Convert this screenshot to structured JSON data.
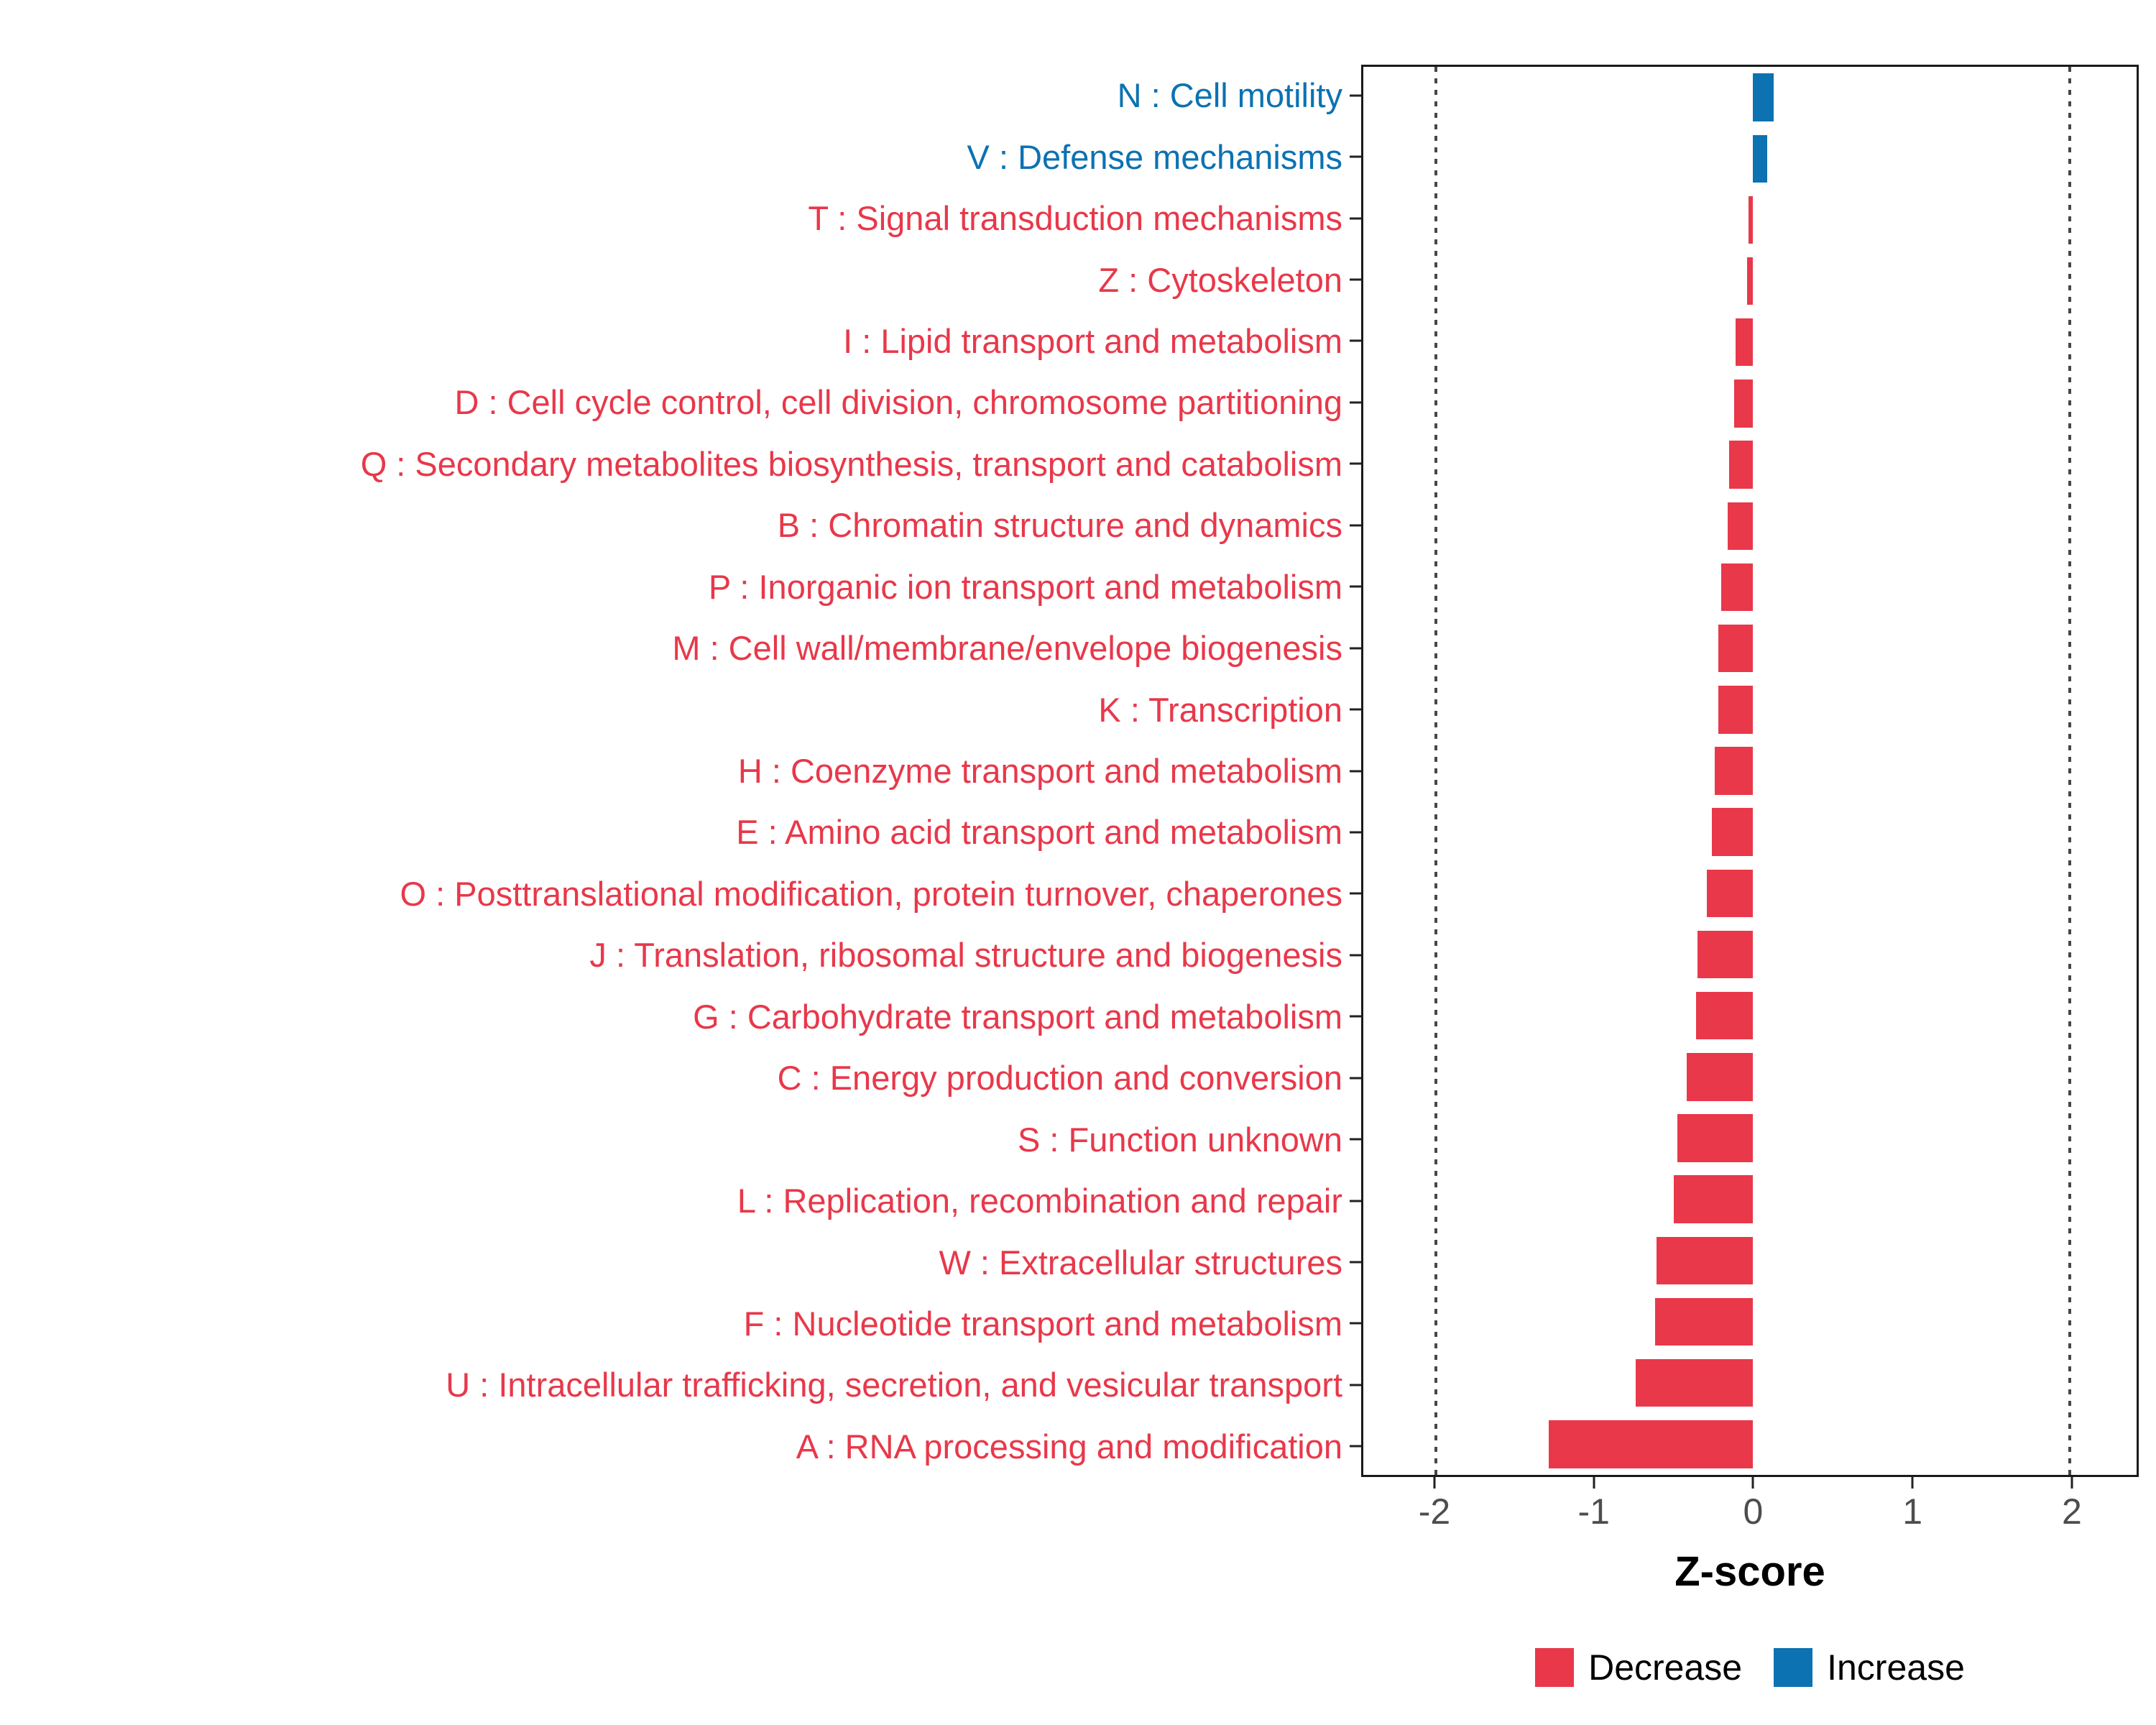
{
  "chart_data": {
    "type": "bar",
    "orientation": "horizontal",
    "title": "",
    "xlabel": "Z-score",
    "x_domain": [
      -2.46,
      2.42
    ],
    "x_ticks": [
      -2,
      -1,
      0,
      1,
      2
    ],
    "x_tick_labels": [
      "-2",
      "-1",
      "0",
      "1",
      "2"
    ],
    "ref_lines": [
      -2,
      2
    ],
    "grid": "off",
    "legend_position": "bottom",
    "colors": {
      "Decrease": "#e8384a",
      "Increase": "#0c72b2"
    },
    "legend": [
      {
        "key": "Decrease",
        "label": "Decrease"
      },
      {
        "key": "Increase",
        "label": "Increase"
      }
    ],
    "rows": [
      {
        "label": "N : Cell motility",
        "z": 0.13,
        "direction": "Increase"
      },
      {
        "label": "V : Defense mechanisms",
        "z": 0.09,
        "direction": "Increase"
      },
      {
        "label": "T : Signal transduction mechanisms",
        "z": -0.03,
        "direction": "Decrease"
      },
      {
        "label": "Z : Cytoskeleton",
        "z": -0.04,
        "direction": "Decrease"
      },
      {
        "label": "I : Lipid transport and metabolism",
        "z": -0.11,
        "direction": "Decrease"
      },
      {
        "label": "D : Cell cycle control, cell division, chromosome partitioning",
        "z": -0.12,
        "direction": "Decrease"
      },
      {
        "label": "Q : Secondary metabolites biosynthesis, transport and catabolism",
        "z": -0.15,
        "direction": "Decrease"
      },
      {
        "label": "B : Chromatin structure and dynamics",
        "z": -0.16,
        "direction": "Decrease"
      },
      {
        "label": "P : Inorganic ion transport and metabolism",
        "z": -0.2,
        "direction": "Decrease"
      },
      {
        "label": "M : Cell wall/membrane/envelope biogenesis",
        "z": -0.22,
        "direction": "Decrease"
      },
      {
        "label": "K : Transcription",
        "z": -0.22,
        "direction": "Decrease"
      },
      {
        "label": "H : Coenzyme transport and metabolism",
        "z": -0.24,
        "direction": "Decrease"
      },
      {
        "label": "E : Amino acid transport and metabolism",
        "z": -0.26,
        "direction": "Decrease"
      },
      {
        "label": "O : Posttranslational modification, protein turnover, chaperones",
        "z": -0.29,
        "direction": "Decrease"
      },
      {
        "label": "J : Translation, ribosomal structure and biogenesis",
        "z": -0.35,
        "direction": "Decrease"
      },
      {
        "label": "G : Carbohydrate transport and metabolism",
        "z": -0.36,
        "direction": "Decrease"
      },
      {
        "label": "C : Energy production and conversion",
        "z": -0.42,
        "direction": "Decrease"
      },
      {
        "label": "S : Function unknown",
        "z": -0.48,
        "direction": "Decrease"
      },
      {
        "label": "L : Replication, recombination and repair",
        "z": -0.5,
        "direction": "Decrease"
      },
      {
        "label": "W : Extracellular structures",
        "z": -0.61,
        "direction": "Decrease"
      },
      {
        "label": "F : Nucleotide transport and metabolism",
        "z": -0.62,
        "direction": "Decrease"
      },
      {
        "label": "U : Intracellular trafficking, secretion, and vesicular transport",
        "z": -0.74,
        "direction": "Decrease"
      },
      {
        "label": "A : RNA processing and modification",
        "z": -1.29,
        "direction": "Decrease"
      }
    ]
  }
}
